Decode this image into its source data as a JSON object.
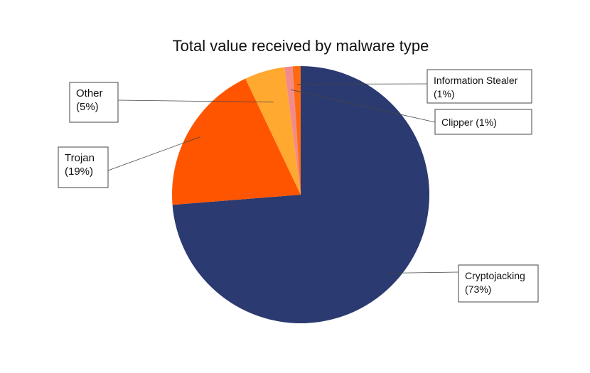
{
  "chart_data": {
    "type": "pie",
    "title": "Total value received by malware type",
    "categories": [
      "Cryptojacking",
      "Trojan",
      "Other",
      "Clipper",
      "Information Stealer"
    ],
    "values": [
      73,
      19,
      5,
      1,
      1
    ],
    "value_labels": [
      "(73%)",
      "(19%)",
      "(5%)",
      "(1%)",
      "(1%)"
    ],
    "colors": [
      "#2b3a70",
      "#ff5500",
      "#ffa930",
      "#f28b8b",
      "#ff6a10"
    ]
  }
}
